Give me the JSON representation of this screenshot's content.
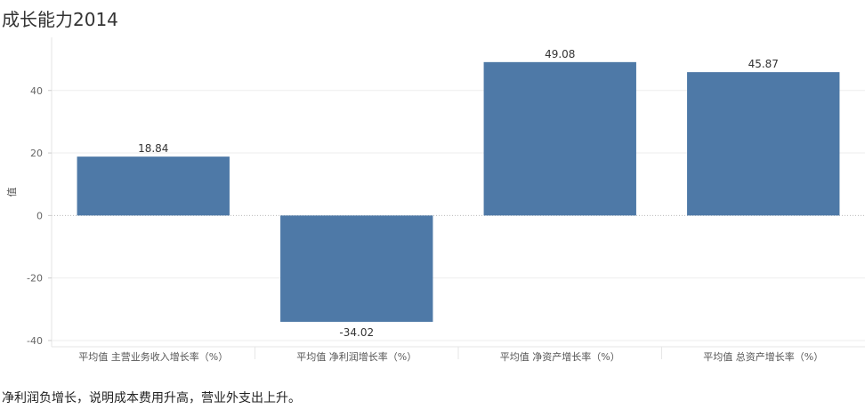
{
  "page": {
    "title": "成长能力2014",
    "note": "净利润负增长，说明成本费用升高，营业外支出上升。"
  },
  "colors": {
    "bar": "#4e79a7",
    "gridline": "#eeeeee",
    "zero_line": "#bbbbbb"
  },
  "chart_data": {
    "type": "bar",
    "title": "成长能力2014",
    "ylabel": "值",
    "xlabel": "",
    "categories": [
      "平均值 主营业务收入增长率（%）",
      "平均值 净利润增长率（%）",
      "平均值 净资产增长率（%）",
      "平均值 总资产增长率（%）"
    ],
    "values": [
      18.84,
      -34.02,
      49.08,
      45.87
    ],
    "value_labels": [
      "18.84",
      "-34.02",
      "49.08",
      "45.87"
    ],
    "ylim": [
      -42,
      57
    ],
    "yticks": [
      -40,
      -20,
      0,
      20,
      40
    ],
    "grid": true,
    "legend": "none"
  }
}
